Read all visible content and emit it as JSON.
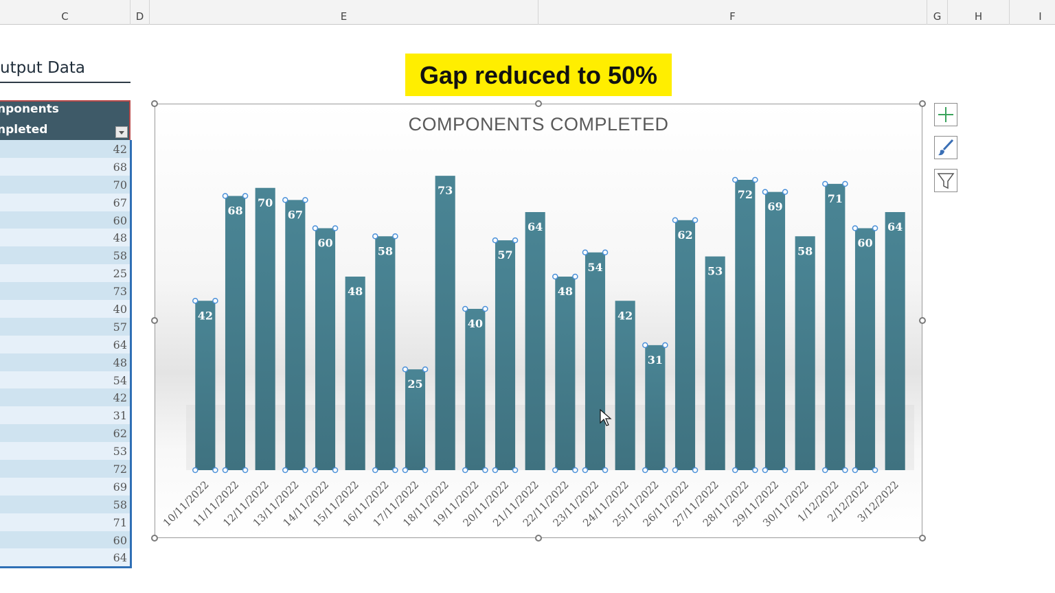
{
  "sheet": {
    "columns": [
      "C",
      "D",
      "E",
      "F",
      "G",
      "H",
      "I"
    ],
    "output_title": "utput Data",
    "table_header_line1": "nponents",
    "table_header_line2": "npleted",
    "values": [
      42,
      68,
      70,
      67,
      60,
      48,
      58,
      25,
      73,
      40,
      57,
      64,
      48,
      54,
      42,
      31,
      62,
      53,
      72,
      69,
      58,
      71,
      60,
      64
    ]
  },
  "banner": {
    "text": "Gap reduced to 50%"
  },
  "chart_data": {
    "type": "bar",
    "title": "COMPONENTS COMPLETED",
    "categories": [
      "10/11/2022",
      "11/11/2022",
      "12/11/2022",
      "13/11/2022",
      "14/11/2022",
      "15/11/2022",
      "16/11/2022",
      "17/11/2022",
      "18/11/2022",
      "19/11/2022",
      "20/11/2022",
      "21/11/2022",
      "22/11/2022",
      "23/11/2022",
      "24/11/2022",
      "25/11/2022",
      "26/11/2022",
      "27/11/2022",
      "28/11/2022",
      "29/11/2022",
      "30/11/2022",
      "1/12/2022",
      "2/12/2022",
      "3/12/2022"
    ],
    "values": [
      42,
      68,
      70,
      67,
      60,
      48,
      58,
      25,
      73,
      40,
      57,
      64,
      48,
      54,
      42,
      31,
      62,
      53,
      72,
      69,
      58,
      71,
      60,
      64
    ],
    "selected_points": [
      0,
      1,
      3,
      4,
      6,
      7,
      9,
      10,
      12,
      13,
      15,
      16,
      18,
      19,
      21,
      22
    ],
    "ylim": [
      0,
      80
    ],
    "gap_width_percent": 50,
    "bar_color": "#4a8595",
    "label_color": "#ffffff",
    "selection_color": "#4a90d9",
    "grid": false,
    "legend": "none"
  },
  "side_buttons": [
    "plus-icon",
    "brush-icon",
    "filter-icon"
  ]
}
